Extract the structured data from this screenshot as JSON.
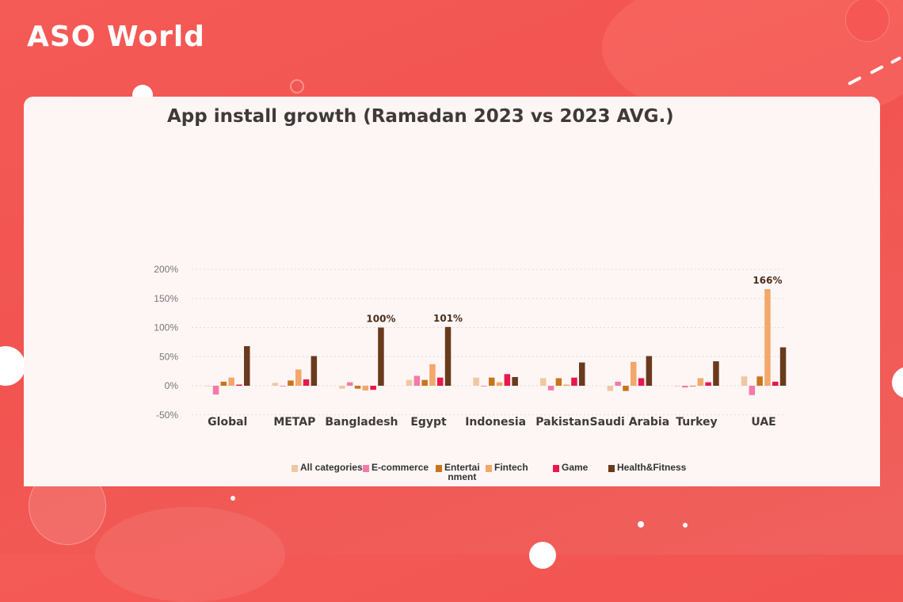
{
  "brand": {
    "logo_text": "ASO World"
  },
  "colors": {
    "background": "#f35753",
    "card": "#fdf6f5",
    "series": [
      "#eec8a0",
      "#f57aa8",
      "#c8741c",
      "#f3a769",
      "#e8174d",
      "#6a3a1c"
    ]
  },
  "chart_data": {
    "type": "bar",
    "title": "App install growth (Ramadan 2023 vs 2023 AVG.)",
    "xlabel": "",
    "ylabel": "",
    "ylim": [
      -50,
      200
    ],
    "yticks": [
      "200%",
      "150%",
      "100%",
      "50%",
      "0%",
      "-50%"
    ],
    "ytick_values": [
      200,
      150,
      100,
      50,
      0,
      -50
    ],
    "grid": "horizontal dotted",
    "legend_position": "bottom",
    "categories": [
      "Global",
      "METAP",
      "Bangladesh",
      "Egypt",
      "Indonesia",
      "Pakistan",
      "Saudi Arabia",
      "Turkey",
      "UAE"
    ],
    "series": [
      {
        "name": "All categories",
        "values": [
          0,
          5,
          -5,
          10,
          14,
          13,
          -9,
          -1,
          16
        ]
      },
      {
        "name": "E-commerce",
        "values": [
          -15,
          -1,
          6,
          17,
          0,
          -8,
          7,
          -3,
          -16
        ]
      },
      {
        "name": "Entertainment",
        "values": [
          7,
          9,
          -5,
          10,
          14,
          13,
          -9,
          -1,
          16
        ]
      },
      {
        "name": "Fintech",
        "values": [
          14,
          28,
          -8,
          37,
          6,
          2,
          41,
          13,
          166
        ]
      },
      {
        "name": "Game",
        "values": [
          2,
          11,
          -7,
          14,
          20,
          14,
          13,
          6,
          7
        ]
      },
      {
        "name": "Health&Fitness",
        "values": [
          68,
          51,
          100,
          101,
          15,
          40,
          51,
          42,
          66
        ]
      }
    ],
    "annotations": [
      {
        "text": "100%",
        "category": "Bangladesh",
        "series": "Health&Fitness"
      },
      {
        "text": "101%",
        "category": "Egypt",
        "series": "Health&Fitness"
      },
      {
        "text": "166%",
        "category": "UAE",
        "series": "Fintech"
      }
    ]
  },
  "legend": [
    {
      "label_lines": [
        "All categories"
      ]
    },
    {
      "label_lines": [
        "E-commerce"
      ]
    },
    {
      "label_lines": [
        "Entertai",
        "nment"
      ]
    },
    {
      "label_lines": [
        "Fintech"
      ]
    },
    {
      "label_lines": [
        "Game"
      ]
    },
    {
      "label_lines": [
        "Health&Fitness"
      ]
    }
  ]
}
